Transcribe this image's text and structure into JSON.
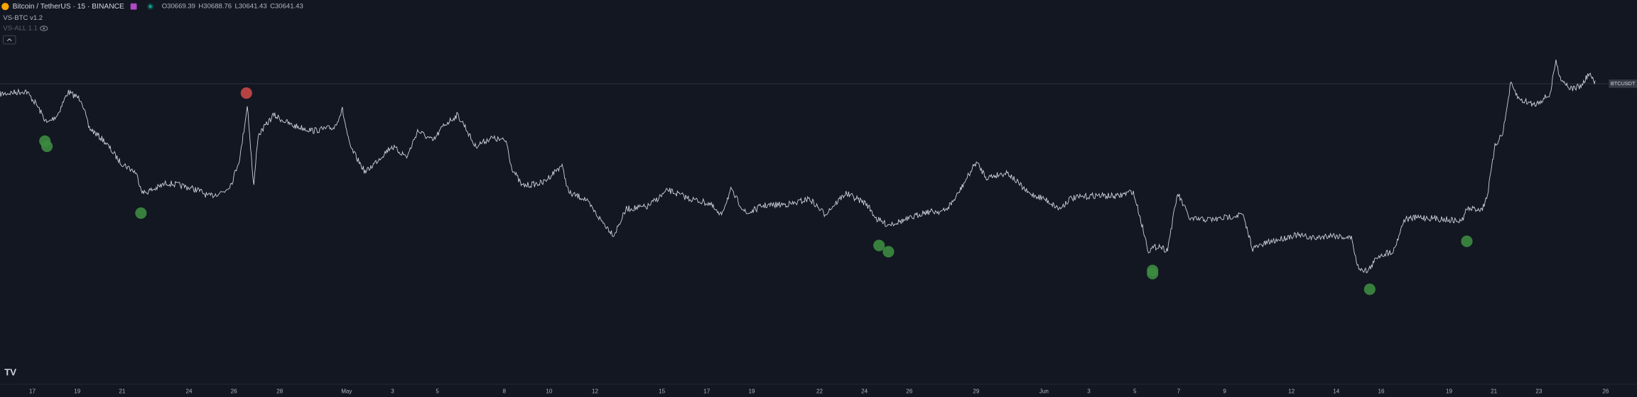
{
  "header": {
    "title": "Bitcoin / TetherUS · 15 · BINANCE",
    "ohlc": [
      "O30669.39",
      "H30688.76",
      "L30641.43",
      "C30641.43"
    ]
  },
  "indicators": [
    "VS-BTC v1.2",
    "VS-ALL 1.1"
  ],
  "price_label": "BTCUSDT",
  "x_axis": {
    "labels": [
      "17",
      "19",
      "21",
      "24",
      "26",
      "28",
      "May",
      "3",
      "5",
      "8",
      "10",
      "12",
      "15",
      "17",
      "19",
      "22",
      "24",
      "26",
      "29",
      "Jun",
      "3",
      "5",
      "7",
      "9",
      "12",
      "14",
      "16",
      "19",
      "21",
      "23",
      "26"
    ]
  }
}
